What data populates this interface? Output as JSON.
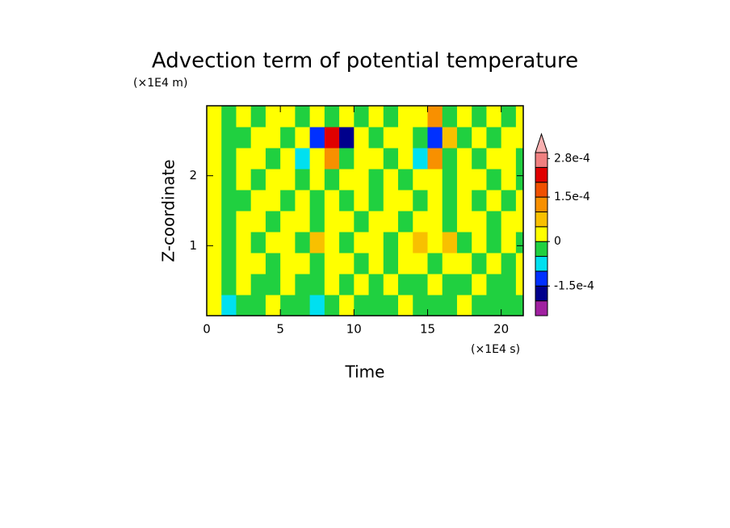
{
  "chart_data": {
    "type": "heatmap",
    "title": "Advection term of potential temperature",
    "x_label": "Time",
    "y_label": "Z-coordinate",
    "x_unit": "(×1E4 s)",
    "y_unit": "(×1E4 m)",
    "xlim": [
      0,
      21.5
    ],
    "ylim": [
      0,
      3
    ],
    "xticks": [
      0,
      5,
      10,
      15,
      20
    ],
    "yticks": [
      1,
      2
    ],
    "xbins": [
      0,
      1,
      2,
      3,
      4,
      5,
      6,
      7,
      8,
      9,
      10,
      11,
      12,
      13,
      14,
      15,
      16,
      17,
      18,
      19,
      20,
      21,
      21.5
    ],
    "ybins": [
      0,
      0.3,
      0.6,
      0.9,
      1.2,
      1.5,
      1.8,
      2.1,
      2.4,
      2.7,
      3.0
    ],
    "z": [
      [
        2e-05,
        -6e-05,
        -2e-05,
        -2e-05,
        2e-05,
        -2e-05,
        -2e-05,
        -6e-05,
        -2e-05,
        2e-05,
        -2e-05,
        -2e-05,
        -2e-05,
        2e-05,
        -2e-05,
        -2e-05,
        -2e-05,
        2e-05,
        -2e-05,
        -2e-05,
        -2e-05,
        -2e-05
      ],
      [
        2e-05,
        -2e-05,
        2e-05,
        -2e-05,
        -2e-05,
        2e-05,
        -2e-05,
        -2e-05,
        2e-05,
        -2e-05,
        2e-05,
        -2e-05,
        2e-05,
        -2e-05,
        -2e-05,
        2e-05,
        -2e-05,
        -2e-05,
        2e-05,
        -2e-05,
        -2e-05,
        2e-05
      ],
      [
        2e-05,
        -2e-05,
        2e-05,
        2e-05,
        -2e-05,
        2e-05,
        2e-05,
        -2e-05,
        2e-05,
        2e-05,
        -2e-05,
        2e-05,
        -2e-05,
        2e-05,
        2e-05,
        -2e-05,
        2e-05,
        2e-05,
        -2e-05,
        2e-05,
        -2e-05,
        2e-05
      ],
      [
        2e-05,
        -2e-05,
        2e-05,
        -2e-05,
        2e-05,
        2e-05,
        -2e-05,
        6e-05,
        2e-05,
        -2e-05,
        2e-05,
        2e-05,
        -2e-05,
        2e-05,
        6e-05,
        2e-05,
        6e-05,
        -2e-05,
        2e-05,
        -2e-05,
        2e-05,
        -2e-05
      ],
      [
        2e-05,
        -2e-05,
        2e-05,
        2e-05,
        -2e-05,
        2e-05,
        2e-05,
        -2e-05,
        2e-05,
        2e-05,
        -2e-05,
        2e-05,
        2e-05,
        -2e-05,
        2e-05,
        2e-05,
        -2e-05,
        2e-05,
        2e-05,
        -2e-05,
        2e-05,
        2e-05
      ],
      [
        2e-05,
        -2e-05,
        -2e-05,
        2e-05,
        2e-05,
        -2e-05,
        2e-05,
        -2e-05,
        2e-05,
        -2e-05,
        2e-05,
        -2e-05,
        2e-05,
        2e-05,
        -2e-05,
        2e-05,
        -2e-05,
        2e-05,
        -2e-05,
        2e-05,
        -2e-05,
        2e-05
      ],
      [
        2e-05,
        -2e-05,
        2e-05,
        -2e-05,
        2e-05,
        2e-05,
        -2e-05,
        2e-05,
        -2e-05,
        2e-05,
        2e-05,
        -2e-05,
        2e-05,
        -2e-05,
        2e-05,
        2e-05,
        -2e-05,
        2e-05,
        2e-05,
        -2e-05,
        2e-05,
        -2e-05
      ],
      [
        2e-05,
        -2e-05,
        2e-05,
        2e-05,
        -2e-05,
        2e-05,
        -7e-05,
        2e-05,
        0.00012,
        -2e-05,
        2e-05,
        2e-05,
        -2e-05,
        2e-05,
        -7e-05,
        0.0001,
        -2e-05,
        2e-05,
        -2e-05,
        2e-05,
        2e-05,
        -2e-05
      ],
      [
        2e-05,
        -2e-05,
        -2e-05,
        2e-05,
        2e-05,
        -2e-05,
        2e-05,
        -0.00013,
        0.00022,
        -0.00017,
        2e-05,
        -2e-05,
        2e-05,
        2e-05,
        -2e-05,
        -0.00012,
        7e-05,
        -2e-05,
        2e-05,
        -2e-05,
        2e-05,
        2e-05
      ],
      [
        2e-05,
        -2e-05,
        2e-05,
        -2e-05,
        2e-05,
        2e-05,
        -2e-05,
        2e-05,
        -2e-05,
        2e-05,
        -2e-05,
        2e-05,
        -2e-05,
        2e-05,
        2e-05,
        0.00013,
        -2e-05,
        2e-05,
        -2e-05,
        2e-05,
        -2e-05,
        2e-05
      ]
    ],
    "colorbar": {
      "levels": [
        -0.00025,
        -0.0002,
        -0.00015,
        -0.0001,
        -5e-05,
        0,
        5e-05,
        0.0001,
        0.00015,
        0.0002,
        0.00025,
        0.0003
      ],
      "colors": [
        "#a020a0",
        "#00008c",
        "#0030ff",
        "#00e0f0",
        "#20d040",
        "#ffff00",
        "#f8c000",
        "#f89000",
        "#f05000",
        "#e00000",
        "#f08080"
      ],
      "ticks": [
        {
          "value": 0.00028,
          "label": "2.8e-4"
        },
        {
          "value": 0.00015,
          "label": "1.5e-4"
        },
        0,
        {
          "value": -0.00015,
          "label": "-1.5e-4"
        }
      ]
    }
  }
}
